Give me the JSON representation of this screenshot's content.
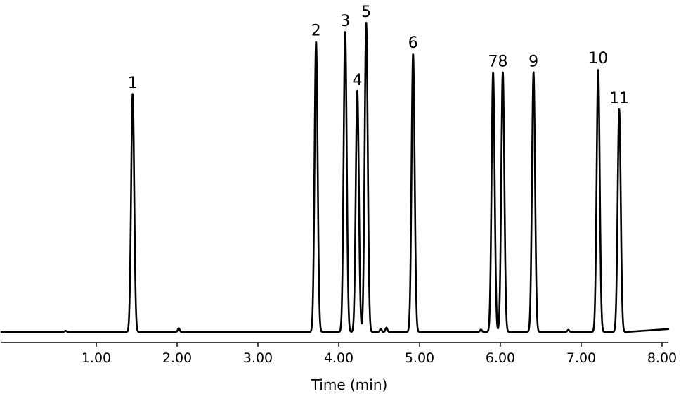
{
  "chart_data": {
    "type": "line",
    "title": "",
    "xlabel": "Time (min)",
    "ylabel": "",
    "xlim": [
      0.0,
      8.0
    ],
    "grid": false,
    "x_ticks": [
      {
        "value": 1.0,
        "label": "1.00"
      },
      {
        "value": 2.0,
        "label": "2.00"
      },
      {
        "value": 3.0,
        "label": "3.00"
      },
      {
        "value": 4.0,
        "label": "4.00"
      },
      {
        "value": 5.0,
        "label": "5.00"
      },
      {
        "value": 6.0,
        "label": "6.00"
      },
      {
        "value": 7.0,
        "label": "7.00"
      },
      {
        "value": 8.0,
        "label": "8.00"
      }
    ],
    "peaks": [
      {
        "label": "1",
        "time": 1.45,
        "height": 0.77
      },
      {
        "label": "2",
        "time": 3.72,
        "height": 0.94
      },
      {
        "label": "3",
        "time": 4.08,
        "height": 0.97
      },
      {
        "label": "4",
        "time": 4.23,
        "height": 0.78
      },
      {
        "label": "5",
        "time": 4.34,
        "height": 1.0
      },
      {
        "label": "6",
        "time": 4.92,
        "height": 0.9
      },
      {
        "label": "7",
        "time": 5.91,
        "height": 0.84
      },
      {
        "label": "8",
        "time": 6.03,
        "height": 0.84
      },
      {
        "label": "9",
        "time": 6.41,
        "height": 0.84
      },
      {
        "label": "10",
        "time": 7.21,
        "height": 0.85
      },
      {
        "label": "11",
        "time": 7.47,
        "height": 0.72
      }
    ],
    "minor_peaks": [
      {
        "time": 0.62,
        "height": 0.004
      },
      {
        "time": 2.02,
        "height": 0.012
      },
      {
        "time": 4.52,
        "height": 0.01
      },
      {
        "time": 4.59,
        "height": 0.014
      },
      {
        "time": 5.76,
        "height": 0.008
      },
      {
        "time": 6.84,
        "height": 0.007
      }
    ]
  }
}
